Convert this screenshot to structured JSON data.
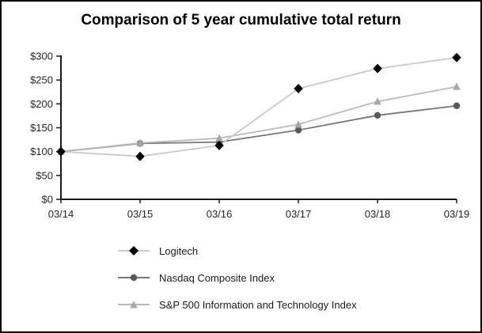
{
  "window": {
    "background": "#ffffff",
    "border_color": "#000000"
  },
  "chart_data": {
    "type": "line",
    "title": "Comparison of 5 year cumulative total return",
    "categories": [
      "03/14",
      "03/15",
      "03/16",
      "03/17",
      "03/18",
      "03/19"
    ],
    "series": [
      {
        "name": "Logitech",
        "values": [
          100,
          90,
          113,
          232,
          274,
          297
        ],
        "line_color": "#c9c9c9",
        "marker_color": "#000000",
        "marker": "diamond"
      },
      {
        "name": "Nasdaq Composite Index",
        "values": [
          100,
          117,
          120,
          145,
          176,
          196
        ],
        "line_color": "#767676",
        "marker_color": "#595959",
        "marker": "circle"
      },
      {
        "name": "S&P 500 Information and Technology Index",
        "values": [
          100,
          118,
          128,
          157,
          205,
          236
        ],
        "line_color": "#b9b9b9",
        "marker_color": "#a8a8a8",
        "marker": "triangle"
      }
    ],
    "xlabel": "",
    "ylabel": "",
    "ylim": [
      0,
      300
    ],
    "y_ticks": {
      "values": [
        0,
        50,
        100,
        150,
        200,
        250,
        300
      ],
      "labels": [
        "$0",
        "$50",
        "$100",
        "$150",
        "$200",
        "$250",
        "$300"
      ]
    },
    "grid": false,
    "legend_position": "bottom-left",
    "axis_color": "#1a1a1a",
    "text_color": "#262626"
  }
}
